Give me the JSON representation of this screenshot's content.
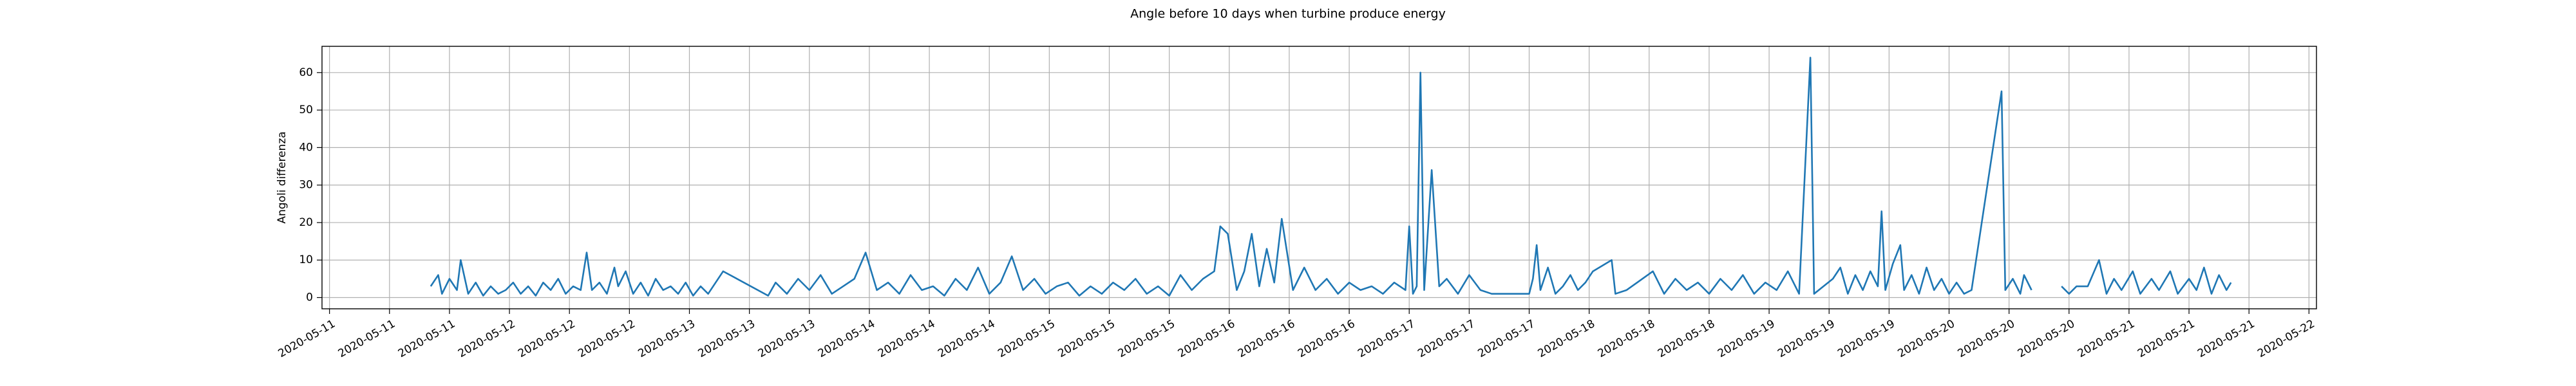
{
  "chart_data": {
    "type": "line",
    "title": "Angle before 10 days when turbine produce energy",
    "ylabel": "Angoli differenza",
    "grid": true,
    "xlim": [
      -1,
      265
    ],
    "ylim": [
      -3,
      67
    ],
    "yticks": [
      0,
      10,
      20,
      30,
      40,
      50,
      60
    ],
    "xticks": [
      {
        "value": 0,
        "label": "2020-05-11"
      },
      {
        "value": 8,
        "label": "2020-05-11"
      },
      {
        "value": 16,
        "label": "2020-05-11"
      },
      {
        "value": 24,
        "label": "2020-05-12"
      },
      {
        "value": 32,
        "label": "2020-05-12"
      },
      {
        "value": 40,
        "label": "2020-05-12"
      },
      {
        "value": 48,
        "label": "2020-05-13"
      },
      {
        "value": 56,
        "label": "2020-05-13"
      },
      {
        "value": 64,
        "label": "2020-05-13"
      },
      {
        "value": 72,
        "label": "2020-05-14"
      },
      {
        "value": 80,
        "label": "2020-05-14"
      },
      {
        "value": 88,
        "label": "2020-05-14"
      },
      {
        "value": 96,
        "label": "2020-05-15"
      },
      {
        "value": 104,
        "label": "2020-05-15"
      },
      {
        "value": 112,
        "label": "2020-05-15"
      },
      {
        "value": 120,
        "label": "2020-05-16"
      },
      {
        "value": 128,
        "label": "2020-05-16"
      },
      {
        "value": 136,
        "label": "2020-05-16"
      },
      {
        "value": 144,
        "label": "2020-05-17"
      },
      {
        "value": 152,
        "label": "2020-05-17"
      },
      {
        "value": 160,
        "label": "2020-05-17"
      },
      {
        "value": 168,
        "label": "2020-05-18"
      },
      {
        "value": 176,
        "label": "2020-05-18"
      },
      {
        "value": 184,
        "label": "2020-05-18"
      },
      {
        "value": 192,
        "label": "2020-05-19"
      },
      {
        "value": 200,
        "label": "2020-05-19"
      },
      {
        "value": 208,
        "label": "2020-05-19"
      },
      {
        "value": 216,
        "label": "2020-05-20"
      },
      {
        "value": 224,
        "label": "2020-05-20"
      },
      {
        "value": 232,
        "label": "2020-05-20"
      },
      {
        "value": 240,
        "label": "2020-05-21"
      },
      {
        "value": 248,
        "label": "2020-05-21"
      },
      {
        "value": 256,
        "label": "2020-05-21"
      },
      {
        "value": 264,
        "label": "2020-05-22"
      }
    ],
    "x": [
      13.5,
      14.5,
      15,
      16,
      17,
      17.5,
      18.5,
      19.5,
      20.5,
      21.5,
      22.5,
      23.5,
      24.5,
      25.5,
      26.5,
      27.5,
      28.5,
      29.5,
      30.5,
      31.5,
      32.5,
      33.5,
      34.3,
      35,
      36,
      37,
      38,
      38.5,
      39.5,
      40.5,
      41.5,
      42.5,
      43.5,
      44.5,
      45.5,
      46.5,
      47.5,
      48.5,
      49.5,
      50.5,
      52.5,
      58.5,
      59.5,
      61,
      62.5,
      64,
      65.5,
      67,
      68.5,
      70,
      71.5,
      73,
      74.5,
      76,
      77.5,
      79,
      80.5,
      82,
      83.5,
      85,
      86.5,
      88,
      89.5,
      91,
      92.5,
      94,
      95.5,
      97,
      98.5,
      100,
      101.5,
      103,
      104.5,
      106,
      107.5,
      109,
      110.5,
      112,
      113.5,
      115,
      116.5,
      118,
      118.8,
      119.8,
      121,
      122,
      123,
      124,
      125,
      126,
      127,
      128.5,
      130,
      131.5,
      133,
      134.5,
      136,
      137.5,
      139,
      140.5,
      142,
      143.5,
      144,
      144.5,
      145,
      145.5,
      146,
      147,
      148,
      149,
      150.5,
      152,
      153.5,
      155,
      160,
      160.5,
      161,
      161.5,
      162.5,
      163.5,
      164.5,
      165.5,
      166.5,
      167.5,
      168.5,
      171,
      171.5,
      173,
      176.5,
      178,
      179.5,
      181,
      182.5,
      184,
      185.5,
      187,
      188.5,
      190,
      191.5,
      193,
      194.5,
      196,
      197.5,
      198,
      200.5,
      201.5,
      202.5,
      203.5,
      204.5,
      205.5,
      206.5,
      207,
      207.5,
      208.5,
      209.5,
      210,
      211,
      212,
      213,
      214,
      215,
      216,
      217,
      218,
      219,
      223,
      223.5,
      224.5,
      225.5,
      226,
      227,
      229,
      231,
      232,
      233,
      234.5,
      236,
      237,
      238,
      239,
      240.5,
      241.5,
      243,
      244,
      245.5,
      246.5,
      248,
      249,
      250,
      251,
      252,
      253,
      253.6
    ],
    "series": [
      {
        "color": "#1f77b4",
        "values": [
          3,
          6,
          1,
          5,
          2,
          10,
          1,
          4,
          0.5,
          3,
          1,
          2,
          4,
          1,
          3,
          0.5,
          4,
          2,
          5,
          1,
          3,
          2,
          12,
          2,
          4,
          1,
          8,
          3,
          7,
          1,
          4,
          0.5,
          5,
          2,
          3,
          1,
          4,
          0.5,
          3,
          1,
          7,
          0.5,
          4,
          1,
          5,
          2,
          6,
          1,
          3,
          5,
          12,
          2,
          4,
          1,
          6,
          2,
          3,
          0.5,
          5,
          2,
          8,
          1,
          4,
          11,
          2,
          5,
          1,
          3,
          4,
          0.5,
          3,
          1,
          4,
          2,
          5,
          1,
          3,
          0.5,
          6,
          2,
          5,
          7,
          19,
          17,
          2,
          7,
          17,
          3,
          13,
          4,
          21,
          2,
          8,
          2,
          5,
          1,
          4,
          2,
          3,
          1,
          4,
          2,
          19,
          1,
          3,
          60,
          2,
          34,
          3,
          5,
          1,
          6,
          2,
          1,
          1,
          5,
          14,
          2,
          8,
          1,
          3,
          6,
          2,
          4,
          7,
          10,
          1,
          2,
          7,
          1,
          5,
          2,
          4,
          1,
          5,
          2,
          6,
          1,
          4,
          2,
          7,
          1,
          64,
          1,
          5,
          8,
          1,
          6,
          2,
          7,
          3,
          23,
          2,
          9,
          14,
          2,
          6,
          1,
          8,
          2,
          5,
          1,
          4,
          1,
          2,
          55,
          2,
          5,
          1,
          6,
          2,
          null,
          3,
          1,
          3,
          3,
          10,
          1,
          5,
          2,
          7,
          1,
          5,
          2,
          7,
          1,
          5,
          2,
          8,
          1,
          6,
          2,
          4
        ]
      }
    ]
  }
}
